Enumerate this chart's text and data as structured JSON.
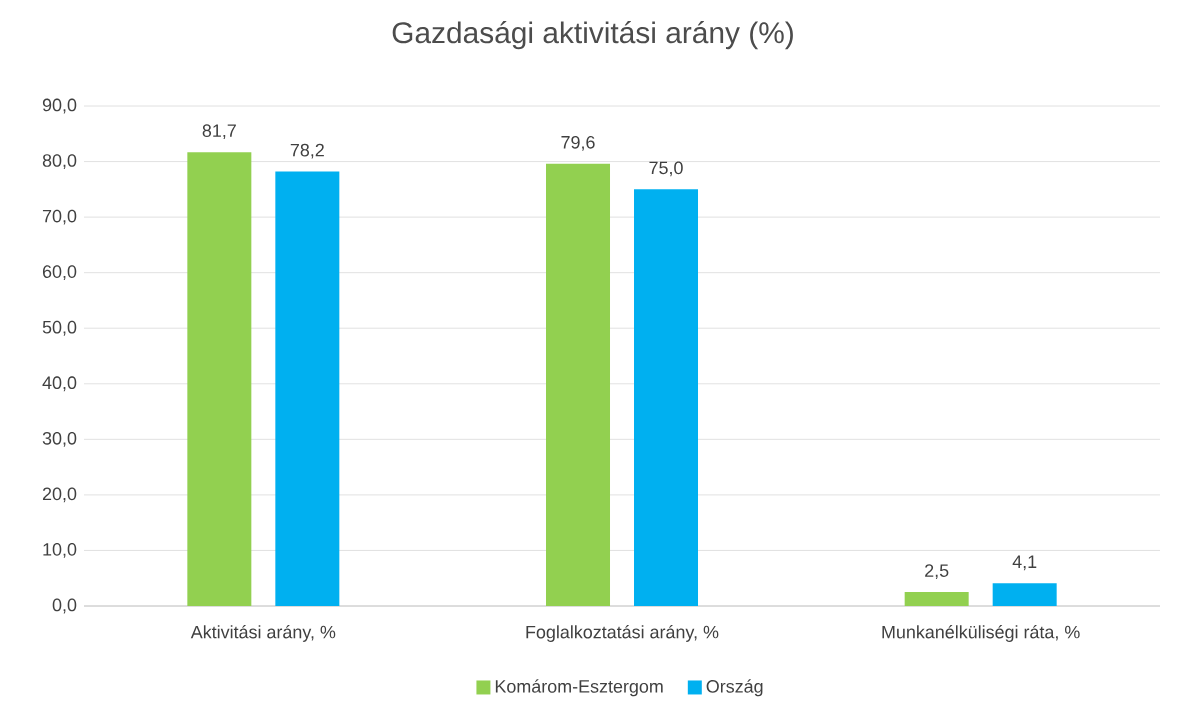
{
  "chart_data": {
    "type": "bar",
    "title": "Gazdasági aktivitási arány (%)",
    "categories": [
      "Aktivitási arány, %",
      "Foglalkoztatási arány, %",
      "Munkanélküliségi ráta, %"
    ],
    "series": [
      {
        "name": "Komárom-Esztergom",
        "color": "#92d050",
        "values": [
          81.7,
          79.6,
          2.5
        ],
        "value_labels": [
          "81,7",
          "79,6",
          "2,5"
        ]
      },
      {
        "name": "Ország",
        "color": "#00b0f0",
        "values": [
          78.2,
          75.0,
          4.1
        ],
        "value_labels": [
          "78,2",
          "75,0",
          "4,1"
        ]
      }
    ],
    "ylim": [
      0,
      90
    ],
    "yticks": [
      {
        "value": 0,
        "label": "0,0"
      },
      {
        "value": 10,
        "label": "10,0"
      },
      {
        "value": 20,
        "label": "20,0"
      },
      {
        "value": 30,
        "label": "30,0"
      },
      {
        "value": 40,
        "label": "40,0"
      },
      {
        "value": 50,
        "label": "50,0"
      },
      {
        "value": 60,
        "label": "60,0"
      },
      {
        "value": 70,
        "label": "70,0"
      },
      {
        "value": 80,
        "label": "80,0"
      },
      {
        "value": 90,
        "label": "90,0"
      }
    ],
    "grid": "y",
    "legend": "bottom"
  }
}
